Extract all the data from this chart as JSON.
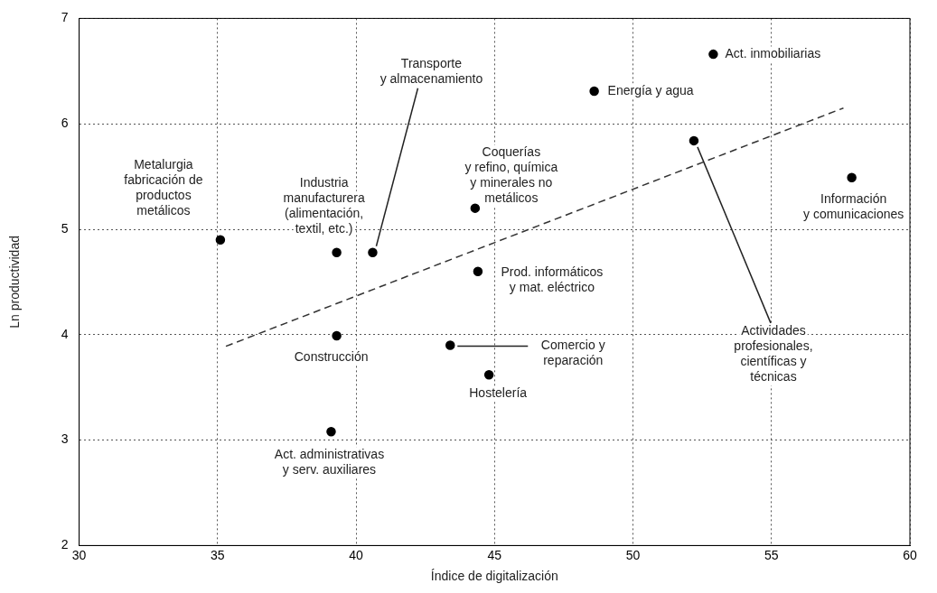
{
  "chart_data": {
    "type": "scatter",
    "xlabel": "Índice de digitalización",
    "ylabel": "Ln productividad",
    "xlim": [
      30,
      60
    ],
    "xticks": [
      30,
      35,
      40,
      45,
      50,
      55,
      60
    ],
    "ylim": [
      2,
      7
    ],
    "yticks": [
      2,
      3,
      4,
      5,
      6,
      7
    ],
    "grid": true,
    "legend": false,
    "marker": "circle",
    "series": [
      {
        "color": "#000000",
        "x": [
          35.1,
          39.3,
          40.6,
          39.3,
          39.1,
          43.4,
          44.8,
          44.4,
          44.3,
          48.6,
          52.9,
          52.2,
          57.9
        ],
        "values": [
          4.9,
          4.78,
          4.78,
          3.99,
          3.08,
          3.9,
          3.62,
          4.6,
          5.2,
          6.31,
          6.66,
          5.84,
          5.49
        ]
      },
      {
        "type": "line",
        "color": "#333333",
        "line_style": "dashed",
        "marker": "none",
        "x": [
          35.3,
          57.6
        ],
        "values": [
          3.89,
          6.15
        ]
      }
    ],
    "annotations": [
      {
        "text": "Metalurgia\nfabricación de\nproductos\nmetálicos",
        "x": 35.1,
        "y": 4.9
      },
      {
        "text": "Industria\nmanufacturera\n(alimentación,\ntextil, etc.)",
        "x": 39.3,
        "y": 4.78
      },
      {
        "text": "Transporte\ny almacenamiento",
        "x": 40.6,
        "y": 4.78
      },
      {
        "text": "Construcción",
        "x": 39.3,
        "y": 3.99
      },
      {
        "text": "Act. administrativas\ny serv. auxiliares",
        "x": 39.1,
        "y": 3.08
      },
      {
        "text": "Comercio y\nreparación",
        "x": 43.4,
        "y": 3.9
      },
      {
        "text": "Hostelería",
        "x": 44.8,
        "y": 3.62
      },
      {
        "text": "Prod. informáticos\ny mat. eléctrico",
        "x": 44.4,
        "y": 4.6
      },
      {
        "text": "Coquerías\ny refino, química\ny minerales no\nmetálicos",
        "x": 44.3,
        "y": 5.2
      },
      {
        "text": "Energía y agua",
        "x": 48.6,
        "y": 6.31
      },
      {
        "text": "Act. inmobiliarias",
        "x": 52.9,
        "y": 6.66
      },
      {
        "text": "Actividades\nprofesionales,\ncientíficas y\ntécnicas",
        "x": 52.2,
        "y": 5.84
      },
      {
        "text": "Información\ny comunicaciones",
        "x": 57.9,
        "y": 5.49
      }
    ]
  }
}
